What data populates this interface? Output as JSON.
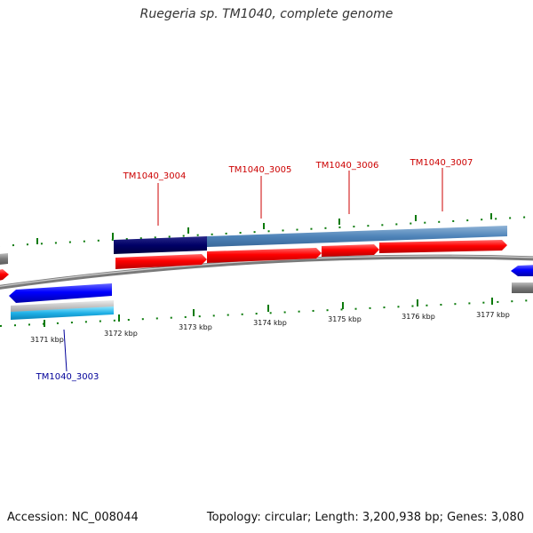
{
  "title": "Ruegeria sp. TM1040, complete genome",
  "footer": {
    "accession": "Accession: NC_008044",
    "summary": "Topology: circular; Length: 3,200,938 bp; Genes: 3,080"
  },
  "colors": {
    "forward_label": "#cc0000",
    "reverse_label": "#000099",
    "cds_forward": "#ff0000",
    "cds_reverse": "#0000ff",
    "gene_dark": "#000066",
    "gene_light": "#4f84b9",
    "backbone": "#888888",
    "tick": "#006600"
  },
  "genes": {
    "g3004": "TM1040_3004",
    "g3005": "TM1040_3005",
    "g3006": "TM1040_3006",
    "g3007": "TM1040_3007",
    "g3003": "TM1040_3003"
  },
  "ticks": {
    "t3171": "3171 kbp",
    "t3172": "3172 kbp",
    "t3173": "3173 kbp",
    "t3174": "3174 kbp",
    "t3175": "3175 kbp",
    "t3176": "3176 kbp",
    "t3177": "3177 kbp"
  }
}
